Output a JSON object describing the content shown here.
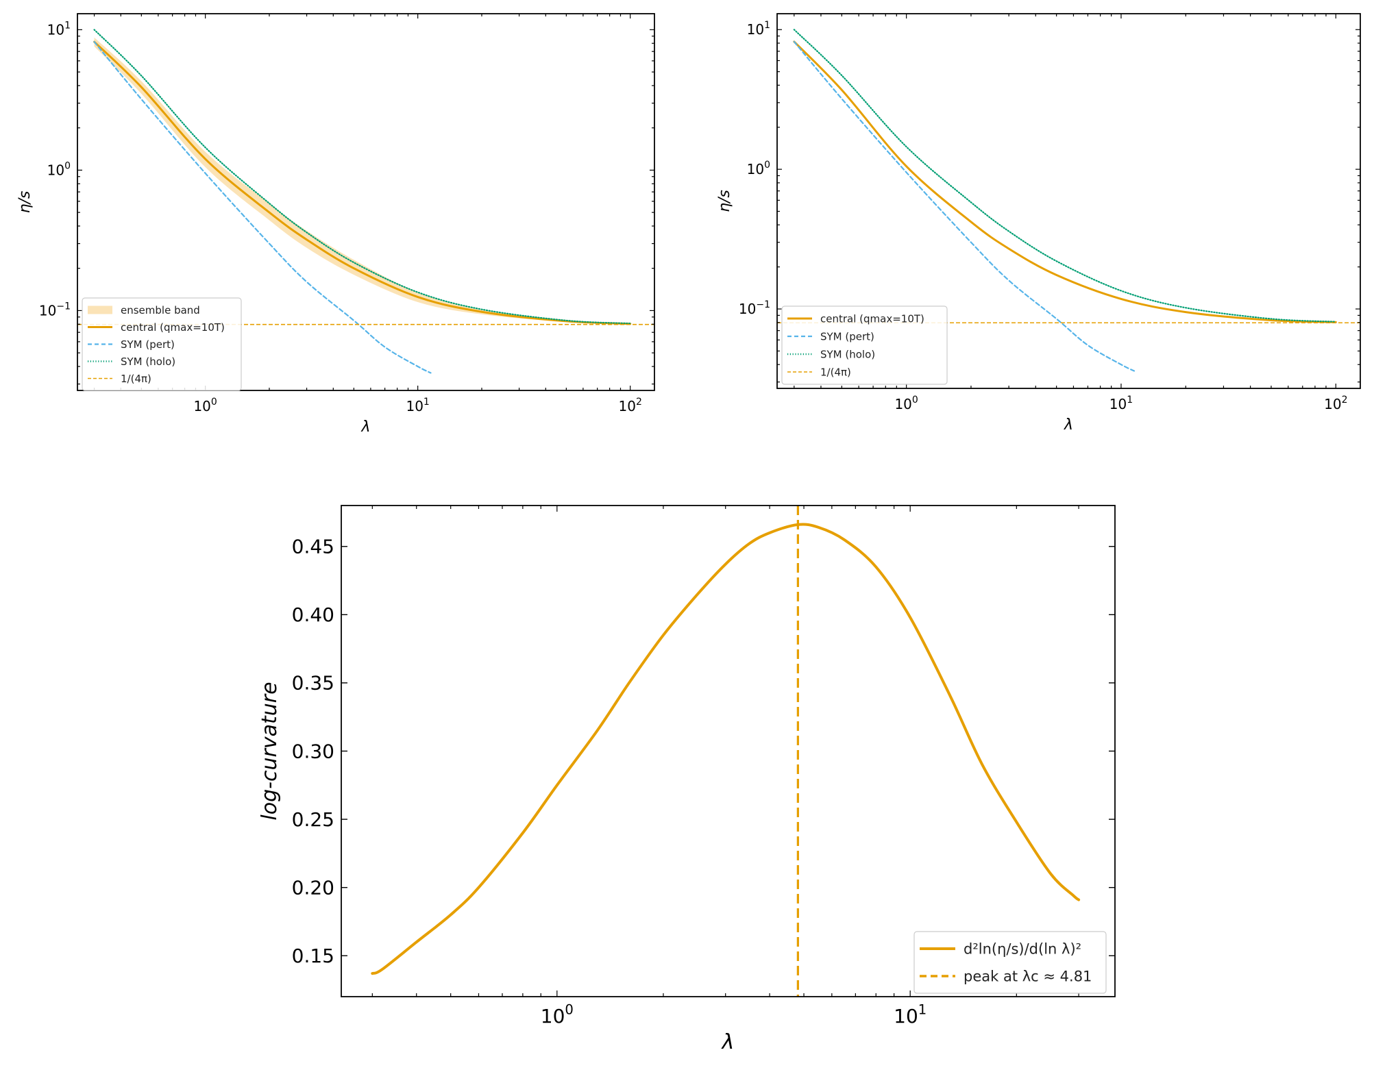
{
  "colors": {
    "central": "#E69F00",
    "band": "#FBE3B6",
    "sym_pert": "#56B4E9",
    "sym_holo": "#009E73",
    "kss": "#E69F00"
  },
  "chart_data": [
    {
      "id": "top-left",
      "type": "line",
      "xscale": "log",
      "yscale": "log",
      "xlim": [
        0.25,
        130
      ],
      "ylim": [
        0.027,
        13
      ],
      "xlabel": "λ",
      "ylabel": "η/s",
      "xticks": [
        {
          "v": 1,
          "b": "10",
          "e": "0"
        },
        {
          "v": 10,
          "b": "10",
          "e": "1"
        },
        {
          "v": 100,
          "b": "10",
          "e": "2"
        }
      ],
      "yticks": [
        {
          "v": 0.1,
          "b": "10",
          "e": "−1"
        },
        {
          "v": 1,
          "b": "10",
          "e": "0"
        },
        {
          "v": 10,
          "b": "10",
          "e": "1"
        }
      ],
      "legend_position": "lower-left",
      "legend": [
        "ensemble band",
        "central (qmax=10T)",
        "SYM (pert)",
        "SYM (holo)",
        "1/(4π)"
      ],
      "band": {
        "x": [
          0.3,
          0.5,
          1,
          2,
          3,
          5,
          10,
          20,
          50,
          100
        ],
        "lower": [
          7.6,
          3.5,
          1.05,
          0.44,
          0.28,
          0.18,
          0.115,
          0.094,
          0.083,
          0.08
        ],
        "upper": [
          8.8,
          4.3,
          1.35,
          0.58,
          0.37,
          0.23,
          0.135,
          0.102,
          0.086,
          0.081
        ]
      },
      "series": [
        {
          "name": "central (qmax=10T)",
          "style": "solid",
          "x": [
            0.3,
            0.5,
            1,
            2,
            3,
            5,
            10,
            20,
            50,
            100
          ],
          "y": [
            8.2,
            3.9,
            1.2,
            0.5,
            0.32,
            0.2,
            0.125,
            0.098,
            0.084,
            0.0805
          ]
        },
        {
          "name": "SYM (pert)",
          "style": "dashed",
          "x": [
            0.3,
            0.5,
            1,
            2,
            3,
            5,
            7,
            10,
            11.5
          ],
          "y": [
            8.2,
            3.2,
            0.95,
            0.3,
            0.16,
            0.085,
            0.055,
            0.04,
            0.036
          ]
        },
        {
          "name": "SYM (holo)",
          "style": "dotted",
          "x": [
            0.3,
            0.5,
            1,
            2,
            3,
            5,
            10,
            20,
            50,
            100
          ],
          "y": [
            10,
            4.7,
            1.45,
            0.58,
            0.36,
            0.22,
            0.135,
            0.102,
            0.085,
            0.081
          ]
        },
        {
          "name": "1/(4π)",
          "style": "hline",
          "y": 0.0796
        }
      ]
    },
    {
      "id": "top-right",
      "type": "line",
      "xscale": "log",
      "yscale": "log",
      "xlim": [
        0.25,
        130
      ],
      "ylim": [
        0.027,
        13
      ],
      "xlabel": "λ",
      "ylabel": "η/s",
      "xticks": [
        {
          "v": 1,
          "b": "10",
          "e": "0"
        },
        {
          "v": 10,
          "b": "10",
          "e": "1"
        },
        {
          "v": 100,
          "b": "10",
          "e": "2"
        }
      ],
      "yticks": [
        {
          "v": 0.1,
          "b": "10",
          "e": "−1"
        },
        {
          "v": 1,
          "b": "10",
          "e": "0"
        },
        {
          "v": 10,
          "b": "10",
          "e": "1"
        }
      ],
      "legend_position": "lower-left",
      "legend": [
        "central (qmax=10T)",
        "SYM (pert)",
        "SYM (holo)",
        "1/(4π)"
      ],
      "series": [
        {
          "name": "central (qmax=10T)",
          "style": "solid",
          "x": [
            0.3,
            0.5,
            1,
            2,
            3,
            5,
            10,
            20,
            50,
            100
          ],
          "y": [
            8.2,
            3.7,
            1.05,
            0.42,
            0.27,
            0.175,
            0.118,
            0.095,
            0.083,
            0.0805
          ]
        },
        {
          "name": "SYM (pert)",
          "style": "dashed",
          "x": [
            0.3,
            0.5,
            1,
            2,
            3,
            5,
            7,
            10,
            11.5
          ],
          "y": [
            8.2,
            3.2,
            0.95,
            0.3,
            0.16,
            0.085,
            0.055,
            0.04,
            0.036
          ]
        },
        {
          "name": "SYM (holo)",
          "style": "dotted",
          "x": [
            0.3,
            0.5,
            1,
            2,
            3,
            5,
            10,
            20,
            50,
            100
          ],
          "y": [
            10,
            4.7,
            1.45,
            0.58,
            0.36,
            0.22,
            0.135,
            0.102,
            0.085,
            0.081
          ]
        },
        {
          "name": "1/(4π)",
          "style": "hline",
          "y": 0.0796
        }
      ]
    },
    {
      "id": "bottom",
      "type": "line",
      "xscale": "log",
      "yscale": "linear",
      "xlim": [
        0.245,
        38
      ],
      "ylim": [
        0.12,
        0.48
      ],
      "xlabel": "λ",
      "ylabel": "log-curvature",
      "xticks": [
        {
          "v": 1,
          "b": "10",
          "e": "0"
        },
        {
          "v": 10,
          "b": "10",
          "e": "1"
        }
      ],
      "yticks": [
        {
          "v": 0.15,
          "t": "0.15"
        },
        {
          "v": 0.2,
          "t": "0.20"
        },
        {
          "v": 0.25,
          "t": "0.25"
        },
        {
          "v": 0.3,
          "t": "0.30"
        },
        {
          "v": 0.35,
          "t": "0.35"
        },
        {
          "v": 0.4,
          "t": "0.40"
        },
        {
          "v": 0.45,
          "t": "0.45"
        }
      ],
      "legend_position": "lower-right",
      "legend": [
        "d²ln(η/s)/d(ln λ)²",
        "peak at λc ≈ 4.81"
      ],
      "peak_lambda": 4.81,
      "series": [
        {
          "name": "d²ln(η/s)/d(ln λ)²",
          "style": "solid",
          "x": [
            0.3,
            0.32,
            0.4,
            0.5,
            0.6,
            0.8,
            1.0,
            1.3,
            1.6,
            2.0,
            2.5,
            3.0,
            3.5,
            4.0,
            4.81,
            5.5,
            6.5,
            8.0,
            10,
            13,
            16,
            20,
            25,
            29,
            30
          ],
          "y": [
            0.137,
            0.14,
            0.16,
            0.18,
            0.2,
            0.24,
            0.275,
            0.315,
            0.35,
            0.385,
            0.415,
            0.437,
            0.452,
            0.46,
            0.466,
            0.464,
            0.455,
            0.435,
            0.398,
            0.34,
            0.29,
            0.248,
            0.21,
            0.194,
            0.191
          ]
        },
        {
          "name": "peak at λc ≈ 4.81",
          "style": "vline",
          "x": 4.81
        }
      ]
    }
  ]
}
